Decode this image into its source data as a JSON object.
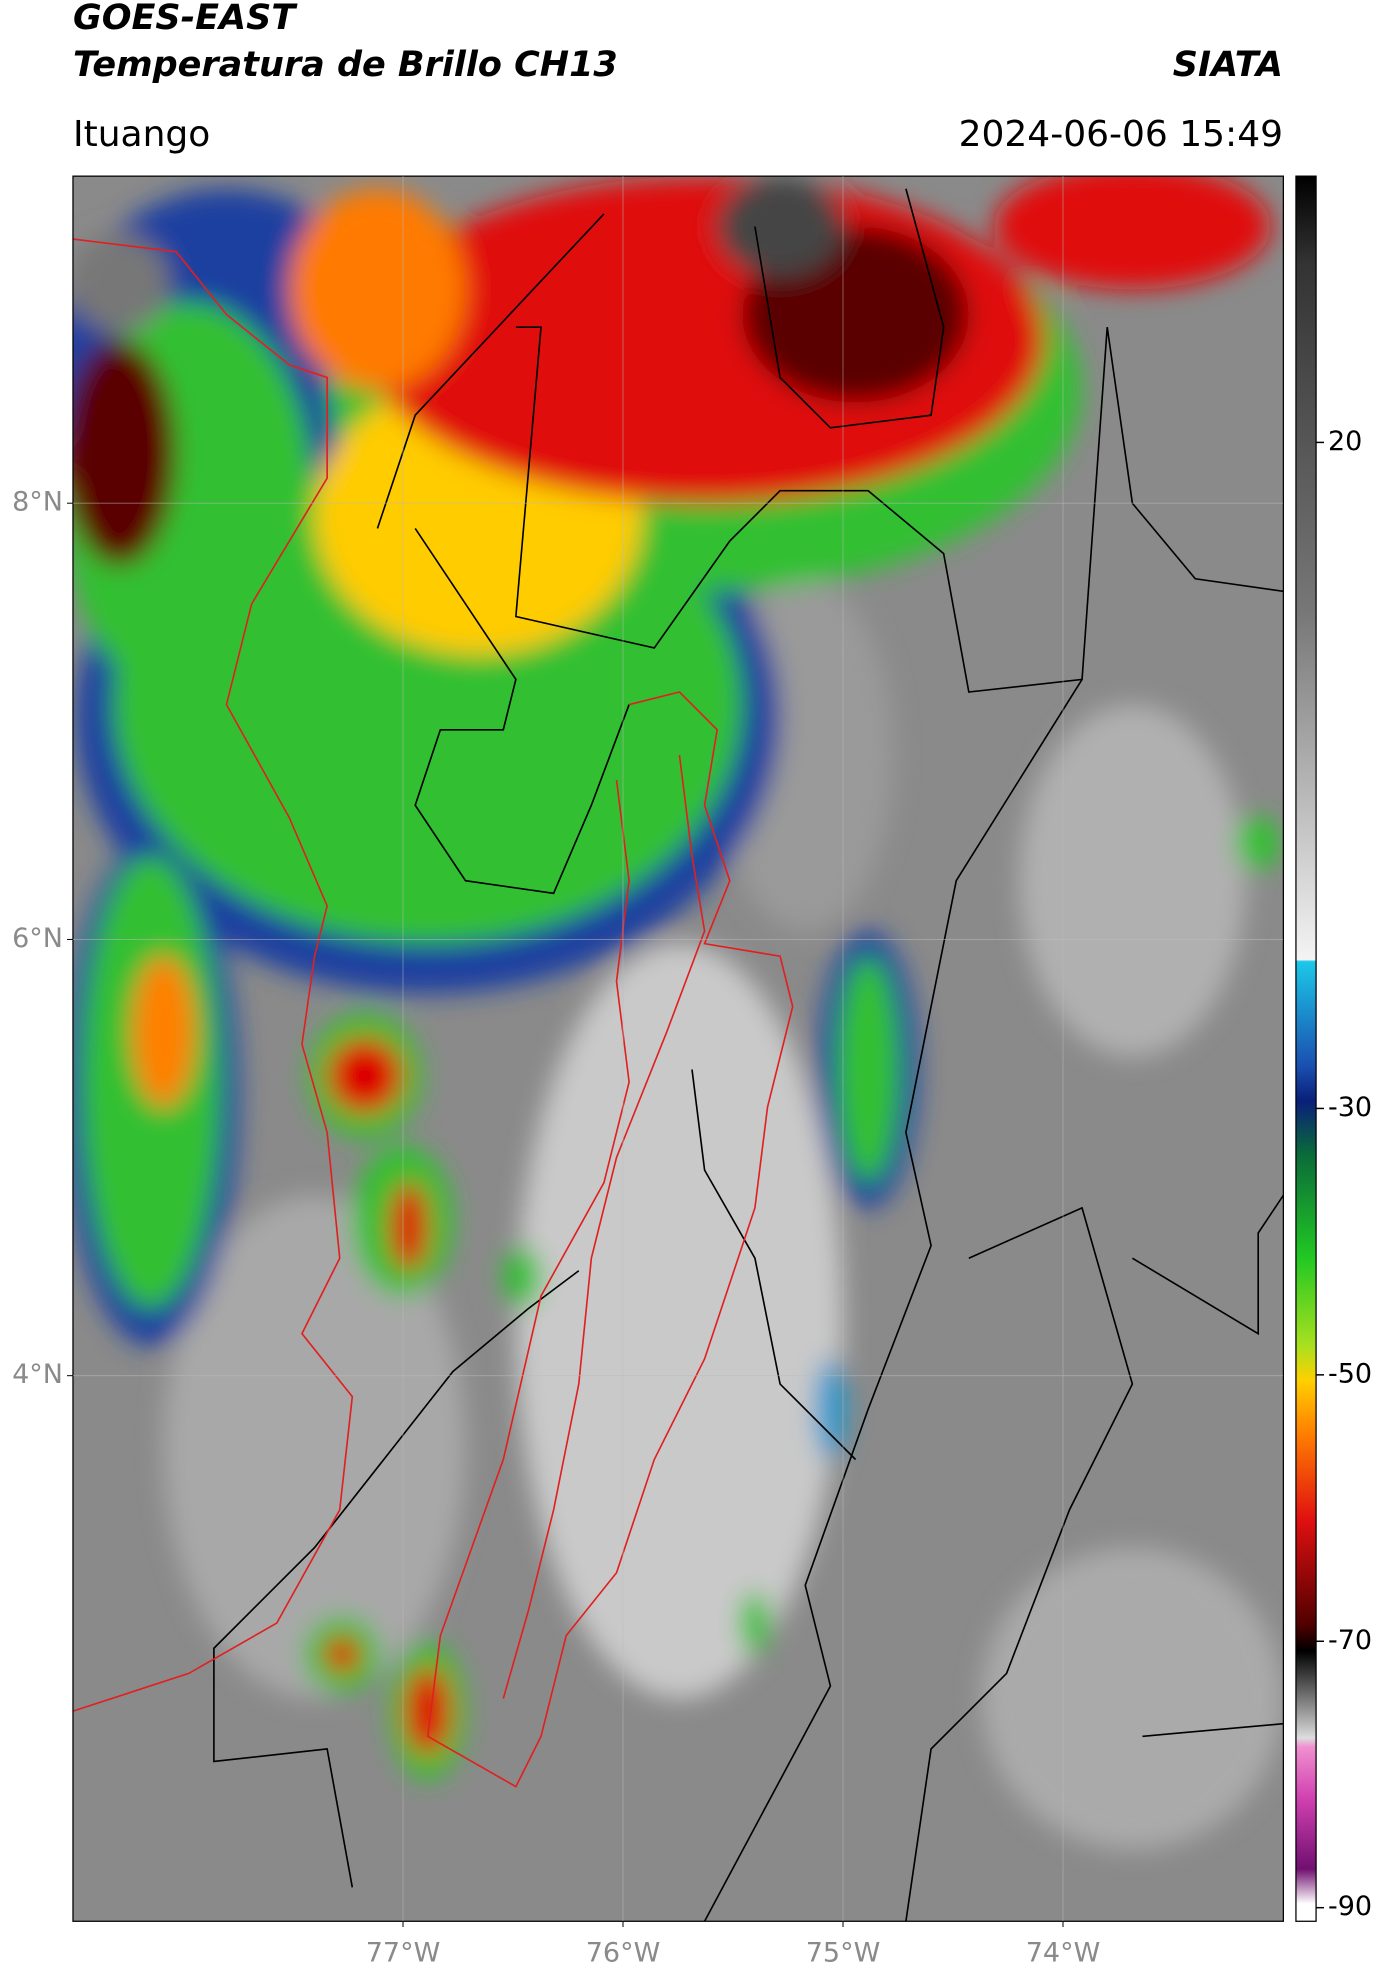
{
  "header": {
    "title": "GOES-EAST",
    "subtitle": "Temperatura de Brillo CH13",
    "organization": "SIATA",
    "location": "Ituango",
    "datetime": "2024-06-06 15:49"
  },
  "map": {
    "xlim": [
      -78.5,
      -73
    ],
    "ylim": [
      1.5,
      9.5
    ],
    "xticks": [
      {
        "value": -77,
        "label": "77°W"
      },
      {
        "value": -76,
        "label": "76°W"
      },
      {
        "value": -75,
        "label": "75°W"
      },
      {
        "value": -74,
        "label": "74°W"
      }
    ],
    "yticks": [
      {
        "value": 8,
        "label": "8°N"
      },
      {
        "value": 6,
        "label": "6°N"
      },
      {
        "value": 4,
        "label": "4°N"
      }
    ],
    "grid": true
  },
  "colorbar": {
    "lim": [
      -91,
      40
    ],
    "ticks": [
      20,
      -30,
      -50,
      -70,
      -90
    ]
  }
}
